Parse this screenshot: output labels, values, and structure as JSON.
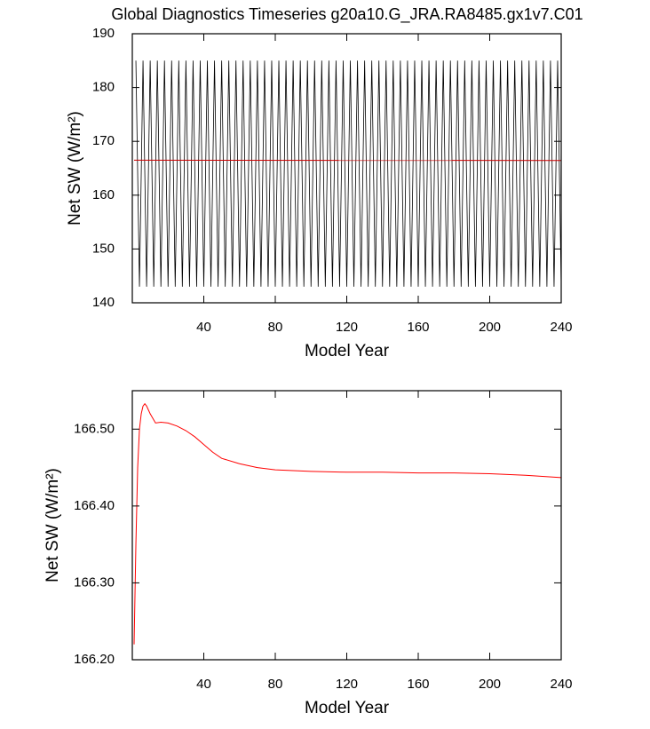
{
  "chart_data": [
    {
      "type": "line",
      "title": "Global Diagnostics Timeseries g20a10.G_JRA.RA8485.gx1v7.C01",
      "x_label": "Model Year",
      "y_label": "Net SW (W/m²)",
      "xlim": [
        0,
        240
      ],
      "xticks": [
        40,
        80,
        120,
        160,
        200,
        240
      ],
      "ylim": [
        140,
        190
      ],
      "yticks": [
        140,
        150,
        160,
        170,
        180,
        190
      ],
      "series": [
        {
          "color": "#000000",
          "x": [
            2,
            4,
            6,
            8,
            10,
            12,
            14,
            16,
            18,
            20,
            22,
            24,
            26,
            28,
            30,
            32,
            34,
            36,
            38,
            40,
            42,
            44,
            46,
            48,
            50,
            52,
            54,
            56,
            58,
            60,
            62,
            64,
            66,
            68,
            70,
            72,
            74,
            76,
            78,
            80,
            82,
            84,
            86,
            88,
            90,
            92,
            94,
            96,
            98,
            100,
            102,
            104,
            106,
            108,
            110,
            112,
            114,
            116,
            118,
            120,
            122,
            124,
            126,
            128,
            130,
            132,
            134,
            136,
            138,
            140,
            142,
            144,
            146,
            148,
            150,
            152,
            154,
            156,
            158,
            160,
            162,
            164,
            166,
            168,
            170,
            172,
            174,
            176,
            178,
            180,
            182,
            184,
            186,
            188,
            190,
            192,
            194,
            196,
            198,
            200,
            202,
            204,
            206,
            208,
            210,
            212,
            214,
            216,
            218,
            220,
            222,
            224,
            226,
            228,
            230,
            232,
            234,
            236,
            238,
            240
          ],
          "values": [
            185,
            143,
            185,
            143,
            185,
            143,
            185,
            143,
            185,
            143,
            185,
            143,
            185,
            143,
            185,
            143,
            185,
            143,
            185,
            143,
            185,
            143,
            185,
            143,
            185,
            143,
            185,
            143,
            185,
            143,
            185,
            143,
            185,
            143,
            185,
            143,
            185,
            143,
            185,
            143,
            185,
            143,
            185,
            143,
            185,
            143,
            185,
            143,
            185,
            143,
            185,
            143,
            185,
            143,
            185,
            143,
            185,
            143,
            185,
            143,
            185,
            143,
            185,
            143,
            185,
            143,
            185,
            143,
            185,
            143,
            185,
            143,
            185,
            143,
            185,
            143,
            185,
            143,
            185,
            143,
            185,
            143,
            185,
            143,
            185,
            143,
            185,
            143,
            185,
            143,
            185,
            143,
            185,
            143,
            185,
            143,
            185,
            143,
            185,
            143,
            185,
            143,
            185,
            143,
            185,
            143,
            185,
            143,
            185,
            143,
            185,
            143,
            185,
            143,
            185,
            143,
            185,
            143,
            185,
            143
          ]
        },
        {
          "color": "#cc0000",
          "x": [
            1,
            240
          ],
          "values": [
            166.5,
            166.44
          ]
        }
      ]
    },
    {
      "type": "line",
      "x_label": "Model Year",
      "y_label": "Net SW (W/m²)",
      "xlim": [
        0,
        240
      ],
      "xticks": [
        40,
        80,
        120,
        160,
        200,
        240
      ],
      "ylim": [
        166.2,
        166.55
      ],
      "yticks": [
        {
          "value": 166.2,
          "label": "166.20"
        },
        {
          "value": 166.3,
          "label": "166.30"
        },
        {
          "value": 166.4,
          "label": "166.40"
        },
        {
          "value": 166.5,
          "label": "166.50"
        }
      ],
      "series": [
        {
          "color": "#ff0000",
          "x": [
            1,
            2,
            3,
            4,
            5,
            6,
            7,
            8,
            10,
            13,
            16,
            20,
            25,
            30,
            35,
            40,
            45,
            50,
            60,
            70,
            80,
            100,
            120,
            140,
            160,
            180,
            200,
            220,
            240
          ],
          "values": [
            166.22,
            166.35,
            166.45,
            166.5,
            166.52,
            166.53,
            166.533,
            166.53,
            166.52,
            166.508,
            166.509,
            166.508,
            166.504,
            166.498,
            166.49,
            166.48,
            166.47,
            166.462,
            166.455,
            166.45,
            166.447,
            166.445,
            166.444,
            166.444,
            166.443,
            166.443,
            166.442,
            166.44,
            166.437
          ]
        }
      ]
    }
  ]
}
